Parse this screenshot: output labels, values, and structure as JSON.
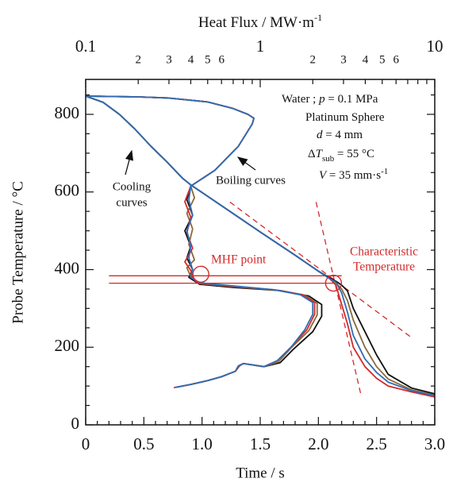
{
  "chart_data": {
    "type": "line",
    "x_label": "Time  /  s",
    "y_label": "Probe Temperature  /  °C",
    "x2_label": [
      "Heat Flux  /  MW·m",
      "-1"
    ],
    "xlim": [
      0,
      3
    ],
    "xticks": [
      0,
      0.5,
      {
        "value": 1,
        "label": "1.0"
      },
      1.5,
      {
        "value": 2,
        "label": "2.0"
      },
      2.5,
      {
        "value": 3,
        "label": "3.0"
      }
    ],
    "xminor_ticks": [
      0.1,
      0.2,
      0.3,
      0.4,
      0.6,
      0.7,
      0.8,
      0.9,
      1.1,
      1.2,
      1.3,
      1.4,
      1.6,
      1.7,
      1.8,
      1.9,
      2.1,
      2.2,
      2.3,
      2.4,
      2.6,
      2.7,
      2.8,
      2.9
    ],
    "x2lim": [
      0.1,
      10
    ],
    "x2_log": true,
    "x2ticks": [
      0.1,
      {
        "value": 0.2,
        "label": "2"
      },
      {
        "value": 0.3,
        "label": "3"
      },
      {
        "value": 0.4,
        "label": "4"
      },
      {
        "value": 0.5,
        "label": "5"
      },
      {
        "value": 0.6,
        "label": "6"
      },
      1,
      2,
      3,
      4,
      5,
      6,
      10
    ],
    "x2minor_ticks": [
      0.7,
      0.8,
      0.9,
      7,
      8,
      9
    ],
    "ylim": [
      0,
      890
    ],
    "yticks": [
      0,
      200,
      400,
      600,
      800
    ],
    "yminor_ticks": [
      50,
      100,
      150,
      250,
      300,
      350,
      450,
      500,
      550,
      650,
      700,
      750,
      850
    ],
    "series": [
      {
        "axis": "x",
        "color": "#d42a2a",
        "x": [
          0,
          0.15,
          0.29,
          0.42,
          0.56,
          0.7,
          0.83,
          0.9,
          1.2,
          1.5,
          1.8,
          2.0,
          2.1,
          2.15,
          2.2,
          2.25,
          2.3,
          2.4,
          2.5,
          2.6,
          2.8,
          3.0
        ],
        "values": [
          847,
          831,
          800,
          763,
          718,
          677,
          636,
          619,
          558,
          497,
          437,
          396,
          376,
          360,
          310,
          260,
          200,
          150,
          120,
          100,
          85,
          72
        ]
      },
      {
        "axis": "x",
        "color": "#8a6a3a",
        "x": [
          0,
          0.15,
          0.29,
          0.42,
          0.56,
          0.7,
          0.83,
          0.9,
          1.2,
          1.5,
          1.8,
          2.0,
          2.1,
          2.15,
          2.2,
          2.25,
          2.3,
          2.4,
          2.5,
          2.6,
          2.8,
          3.0
        ],
        "values": [
          847,
          831,
          800,
          763,
          718,
          677,
          636,
          619,
          558,
          497,
          437,
          396,
          376,
          366,
          350,
          320,
          270,
          200,
          150,
          118,
          90,
          77
        ]
      },
      {
        "axis": "x",
        "color": "#111111",
        "x": [
          0,
          0.15,
          0.29,
          0.42,
          0.56,
          0.7,
          0.83,
          0.9,
          1.2,
          1.5,
          1.8,
          2.0,
          2.1,
          2.15,
          2.2,
          2.25,
          2.3,
          2.4,
          2.5,
          2.6,
          2.8,
          3.0
        ],
        "values": [
          847,
          831,
          800,
          763,
          718,
          677,
          636,
          619,
          558,
          497,
          437,
          396,
          378,
          370,
          360,
          345,
          300,
          240,
          180,
          130,
          95,
          80
        ]
      },
      {
        "axis": "x",
        "color": "#2f6db5",
        "x": [
          0,
          0.15,
          0.29,
          0.42,
          0.56,
          0.7,
          0.83,
          0.9,
          1.2,
          1.5,
          1.8,
          2.0,
          2.1,
          2.15,
          2.2,
          2.25,
          2.3,
          2.4,
          2.5,
          2.6,
          2.8,
          3.0
        ],
        "values": [
          847,
          831,
          800,
          763,
          718,
          677,
          636,
          619,
          558,
          497,
          437,
          396,
          376,
          368,
          340,
          290,
          230,
          170,
          135,
          110,
          88,
          75
        ]
      },
      {
        "axis": "x2",
        "color": "#111111",
        "x": [
          0.1,
          0.2,
          0.3,
          0.5,
          0.7,
          0.85,
          0.92,
          0.9,
          0.75,
          0.55,
          0.4,
          0.38,
          0.41,
          0.37,
          0.4,
          0.38,
          0.41,
          0.39,
          0.45,
          0.7,
          1.3,
          1.9,
          2.25,
          2.25,
          2.0,
          1.55,
          1.3,
          1.05,
          0.8,
          0.76,
          0.72,
          0.6,
          0.5,
          0.4,
          0.33
        ],
        "values": [
          847,
          845,
          842,
          832,
          815,
          800,
          790,
          775,
          718,
          656,
          615,
          580,
          540,
          500,
          460,
          430,
          400,
          380,
          362,
          354,
          346,
          332,
          310,
          280,
          240,
          195,
          160,
          150,
          158,
          152,
          138,
          124,
          114,
          104,
          97
        ]
      },
      {
        "axis": "x2",
        "color": "#8a6a3a",
        "x": [
          0.1,
          0.2,
          0.3,
          0.5,
          0.7,
          0.85,
          0.92,
          0.9,
          0.75,
          0.55,
          0.4,
          0.42,
          0.38,
          0.41,
          0.39,
          0.42,
          0.38,
          0.4,
          0.45,
          0.7,
          1.25,
          1.8,
          2.12,
          2.12,
          1.9,
          1.5,
          1.27,
          1.05,
          0.8,
          0.75,
          0.72,
          0.6,
          0.5,
          0.4,
          0.33
        ],
        "values": [
          847,
          845,
          842,
          832,
          815,
          800,
          790,
          775,
          718,
          656,
          615,
          585,
          545,
          505,
          465,
          425,
          405,
          382,
          364,
          356,
          347,
          334,
          313,
          283,
          243,
          198,
          162,
          150,
          158,
          152,
          138,
          124,
          114,
          104,
          97
        ]
      },
      {
        "axis": "x2",
        "color": "#d42a2a",
        "x": [
          0.1,
          0.2,
          0.3,
          0.5,
          0.7,
          0.85,
          0.92,
          0.9,
          0.75,
          0.55,
          0.4,
          0.37,
          0.4,
          0.38,
          0.41,
          0.37,
          0.4,
          0.41,
          0.44,
          0.7,
          1.2,
          1.75,
          2.05,
          2.05,
          1.85,
          1.5,
          1.25,
          1.05,
          0.8,
          0.76,
          0.72,
          0.6,
          0.5,
          0.4,
          0.32
        ],
        "values": [
          847,
          845,
          842,
          832,
          815,
          800,
          790,
          775,
          718,
          656,
          615,
          575,
          535,
          495,
          455,
          420,
          398,
          378,
          365,
          357,
          348,
          335,
          315,
          285,
          245,
          200,
          165,
          150,
          158,
          152,
          138,
          124,
          114,
          104,
          96
        ]
      },
      {
        "axis": "x2",
        "color": "#2f6db5",
        "x": [
          0.1,
          0.2,
          0.3,
          0.5,
          0.7,
          0.85,
          0.92,
          0.9,
          0.75,
          0.55,
          0.4,
          0.39,
          0.41,
          0.38,
          0.4,
          0.39,
          0.41,
          0.4,
          0.45,
          0.7,
          1.2,
          1.7,
          2.0,
          2.0,
          1.8,
          1.5,
          1.25,
          1.05,
          0.8,
          0.75,
          0.72,
          0.6,
          0.5,
          0.4,
          0.33
        ],
        "values": [
          847,
          845,
          842,
          832,
          815,
          800,
          790,
          775,
          718,
          656,
          615,
          580,
          540,
          500,
          460,
          430,
          400,
          380,
          366,
          358,
          348,
          335,
          315,
          285,
          245,
          200,
          165,
          150,
          158,
          152,
          138,
          124,
          114,
          104,
          97
        ]
      }
    ],
    "reference_lines": [
      {
        "color": "#d42a2a",
        "dashed": true,
        "x": [
          1.24,
          2.8
        ],
        "values": [
          574,
          225
        ]
      },
      {
        "color": "#d42a2a",
        "dashed": true,
        "x": [
          1.98,
          2.37
        ],
        "values": [
          574,
          72
        ]
      },
      {
        "color": "#d42a2a",
        "dashed": false,
        "x": [
          0.2,
          2.2
        ],
        "values": [
          384,
          384
        ]
      },
      {
        "color": "#d42a2a",
        "dashed": false,
        "x": [
          0.2,
          2.13
        ],
        "values": [
          365,
          365
        ]
      }
    ],
    "circles": [
      {
        "color": "#d42a2a",
        "x": 0.99,
        "value": 388
      },
      {
        "color": "#d42a2a",
        "x": 2.13,
        "value": 365
      }
    ],
    "annotations": {
      "cooling": [
        "Cooling",
        "curves"
      ],
      "boiling": "Boiling curves",
      "mhf": "MHF point",
      "characteristic": [
        "Characteristic",
        "Temperature"
      ]
    },
    "conditions": [
      [
        "Water ; ",
        "p",
        " = 0.1 MPa"
      ],
      [
        "Platinum Sphere"
      ],
      [
        "d",
        " = 4 mm"
      ],
      [
        "Δ",
        "T",
        "sub",
        " = 55 °C"
      ],
      [
        "V",
        " = 35 mm·s",
        "-1"
      ]
    ]
  }
}
